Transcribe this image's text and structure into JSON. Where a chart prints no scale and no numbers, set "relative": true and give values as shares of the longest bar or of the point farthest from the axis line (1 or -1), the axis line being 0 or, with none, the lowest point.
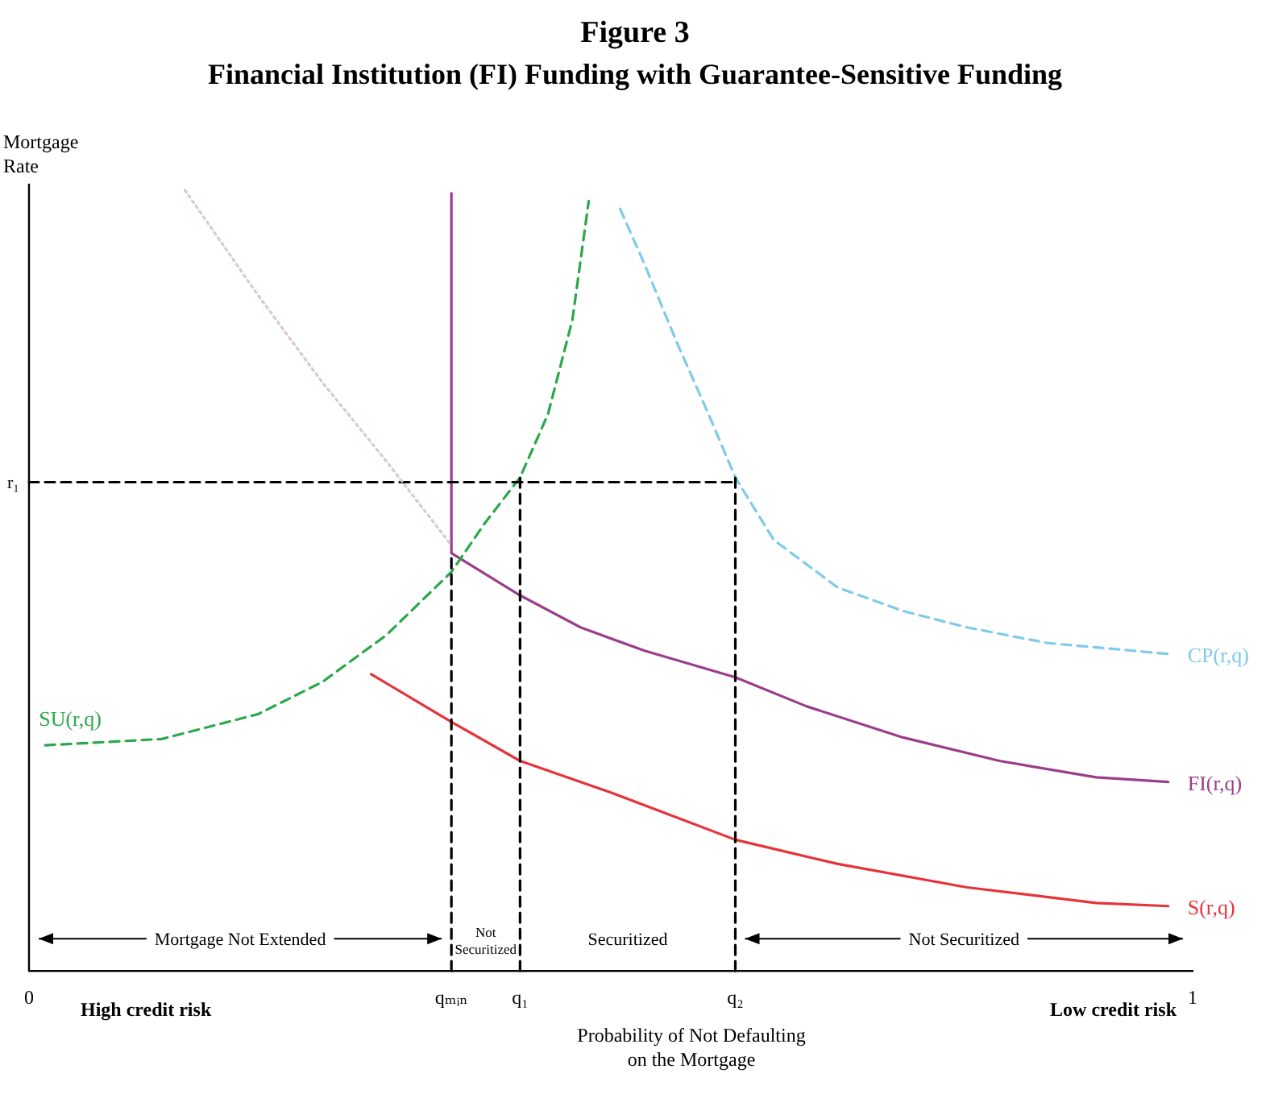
{
  "chart_data": {
    "type": "line",
    "title": "Figure 3",
    "subtitle": "Financial Institution (FI) Funding with Guarantee-Sensitive Funding",
    "xlabel": "Probability of Not Defaulting on the Mortgage",
    "ylabel": "Mortgage Rate",
    "relative": true,
    "legend": false,
    "grid": false,
    "marker": "none",
    "xlim": [
      0,
      1
    ],
    "xticks": [
      {
        "value": 0,
        "label": "0"
      },
      {
        "value": 0.363,
        "label": "qₘᵢₙ"
      },
      {
        "value": 0.422,
        "label": "q₁"
      },
      {
        "value": 0.607,
        "label": "q₂"
      },
      {
        "value": 1,
        "label": "1"
      }
    ],
    "series": [
      {
        "x": [
          0.134,
          0.197,
          0.252,
          0.307,
          0.363
        ],
        "values": [
          1.0,
          0.865,
          0.754,
          0.653,
          0.545
        ],
        "color": "#d8c8d8",
        "line_style": "dotted"
      },
      {
        "x": [
          0,
          0.607
        ],
        "values": [
          0.626,
          0.626
        ],
        "color": "#000000",
        "line_style": "dashed"
      },
      {
        "x": [
          0.363,
          0.363
        ],
        "values": [
          0,
          0.535
        ],
        "color": "#000000",
        "line_style": "dashed"
      },
      {
        "x": [
          0.422,
          0.422
        ],
        "values": [
          0,
          0.632
        ],
        "color": "#000000",
        "line_style": "dashed"
      },
      {
        "x": [
          0.607,
          0.607
        ],
        "values": [
          0,
          0.632
        ],
        "color": "#000000",
        "line_style": "dashed"
      },
      {
        "name": "SU(r,q)",
        "x": [
          0.014,
          0.114,
          0.197,
          0.252,
          0.307,
          0.363,
          0.391,
          0.422,
          0.446,
          0.467,
          0.481
        ],
        "values": [
          0.289,
          0.297,
          0.329,
          0.37,
          0.43,
          0.511,
          0.572,
          0.632,
          0.713,
          0.834,
          0.986
        ],
        "color": "#2aa84a",
        "line_style": "dashed"
      },
      {
        "name": "CP(r,q)",
        "x": [
          0.508,
          0.529,
          0.557,
          0.584,
          0.607,
          0.64,
          0.695,
          0.751,
          0.806,
          0.875,
          0.979
        ],
        "values": [
          0.976,
          0.905,
          0.804,
          0.713,
          0.632,
          0.552,
          0.491,
          0.461,
          0.44,
          0.42,
          0.406
        ],
        "color": "#7ecbea",
        "line_style": "dashed"
      },
      {
        "name": "FI(r,q)",
        "x": [
          0.363,
          0.363,
          0.422,
          0.474,
          0.529,
          0.607,
          0.668,
          0.751,
          0.834,
          0.917,
          0.979
        ],
        "values": [
          0.996,
          0.535,
          0.481,
          0.44,
          0.41,
          0.376,
          0.339,
          0.299,
          0.269,
          0.248,
          0.242
        ],
        "color": "#9a3d8c",
        "line_style": "solid"
      },
      {
        "name": "S(r,q)",
        "x": [
          0.294,
          0.363,
          0.422,
          0.501,
          0.607,
          0.695,
          0.806,
          0.917,
          0.979
        ],
        "values": [
          0.38,
          0.319,
          0.269,
          0.228,
          0.168,
          0.137,
          0.107,
          0.087,
          0.083
        ],
        "color": "#e8323a",
        "line_style": "solid"
      }
    ],
    "annotations": [
      {
        "text": "r₁",
        "x": 0,
        "y": 0.626
      },
      "Mortgage Not Extended",
      "Not Securitized",
      "Securitized",
      "Not Securitized",
      "High credit risk",
      "Low credit risk"
    ]
  }
}
